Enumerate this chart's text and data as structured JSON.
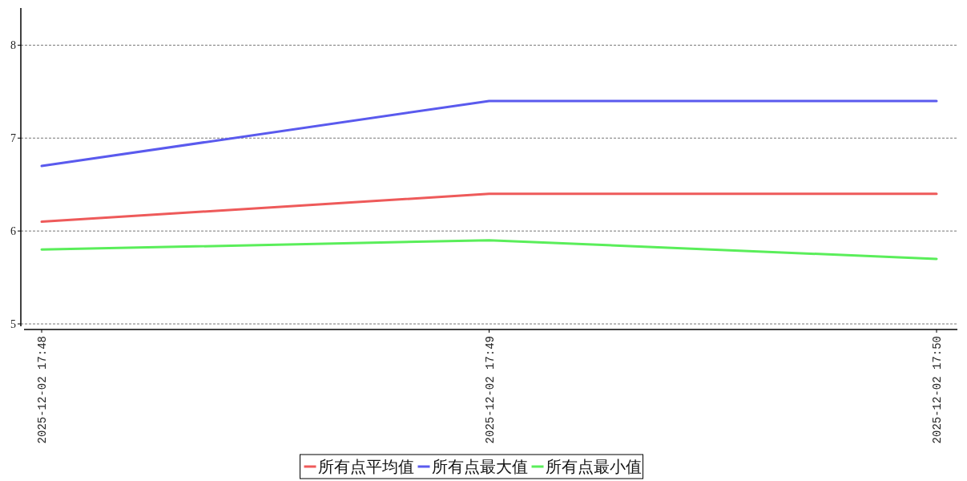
{
  "chart_data": {
    "type": "line",
    "categories": [
      "2025-12-02 17:48",
      "2025-12-02 17:49",
      "2025-12-02 17:50"
    ],
    "series": [
      {
        "name": "所有点平均值",
        "color": "#ee5a5a",
        "values": [
          6.1,
          6.4,
          6.4
        ]
      },
      {
        "name": "所有点最大值",
        "color": "#5a5aee",
        "values": [
          6.7,
          7.4,
          7.4
        ]
      },
      {
        "name": "所有点最小值",
        "color": "#5aee5a",
        "values": [
          5.8,
          5.9,
          5.7
        ]
      }
    ],
    "ylim": [
      4.94,
      8.4
    ],
    "yticks": [
      5,
      6,
      7,
      8
    ],
    "grid": "y",
    "legend": "bottom",
    "marker": "none",
    "line_style": "solid"
  }
}
